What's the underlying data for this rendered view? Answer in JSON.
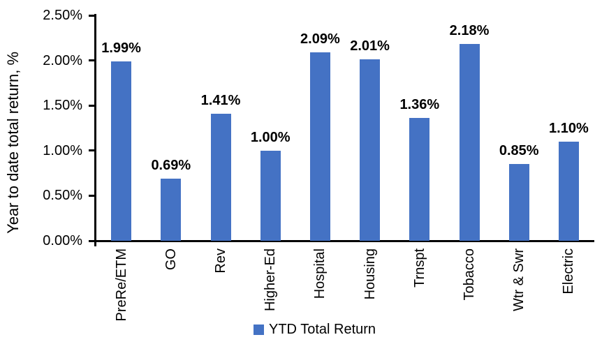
{
  "chart_data": {
    "type": "bar",
    "title": "",
    "ylabel": "Year to date total return, %",
    "xlabel": "",
    "ylim": [
      0,
      2.5
    ],
    "grid": false,
    "legend_position": "bottom",
    "axis_color": "#000000",
    "text_color": "#000000",
    "background": "#FFFFFF",
    "yticks": [
      {
        "value": 0.0,
        "label": "0.00%"
      },
      {
        "value": 0.5,
        "label": "0.50%"
      },
      {
        "value": 1.0,
        "label": "1.00%"
      },
      {
        "value": 1.5,
        "label": "1.50%"
      },
      {
        "value": 2.0,
        "label": "2.00%"
      },
      {
        "value": 2.5,
        "label": "2.50%"
      }
    ],
    "categories": [
      "PreRe/ETM",
      "GO",
      "Rev",
      "Higher-Ed",
      "Hospital",
      "Housing",
      "Trnspt",
      "Tobacco",
      "Wtr & Swr",
      "Electric"
    ],
    "series": [
      {
        "name": "YTD Total Return",
        "color": "#4472C4",
        "values": [
          1.99,
          0.69,
          1.41,
          1.0,
          2.09,
          2.01,
          1.36,
          2.18,
          0.85,
          1.1
        ],
        "data_labels": [
          "1.99%",
          "0.69%",
          "1.41%",
          "1.00%",
          "2.09%",
          "2.01%",
          "1.36%",
          "2.18%",
          "0.85%",
          "1.10%"
        ]
      }
    ]
  }
}
